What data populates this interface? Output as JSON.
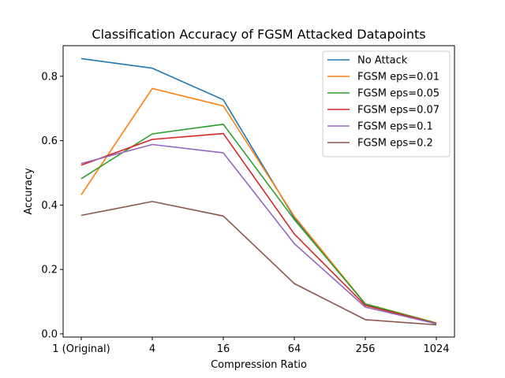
{
  "chart_data": {
    "type": "line",
    "title": "Classification Accuracy of FGSM Attacked Datapoints",
    "xlabel": "Compression Ratio",
    "ylabel": "Accuracy",
    "categories": [
      "1 (Original)",
      "4",
      "16",
      "64",
      "256",
      "1024"
    ],
    "ylim": [
      -0.01,
      0.895
    ],
    "yticks": [
      0.0,
      0.2,
      0.4,
      0.6,
      0.8
    ],
    "grid": false,
    "legend_position": "top-right",
    "series": [
      {
        "name": "No Attack",
        "color": "#1f77b4",
        "values": [
          0.855,
          0.825,
          0.727,
          0.36,
          0.092,
          0.033
        ]
      },
      {
        "name": "FGSM eps=0.01",
        "color": "#ff7f0e",
        "values": [
          0.432,
          0.762,
          0.708,
          0.365,
          0.093,
          0.034
        ]
      },
      {
        "name": "FGSM eps=0.05",
        "color": "#2ca02c",
        "values": [
          0.482,
          0.621,
          0.651,
          0.355,
          0.093,
          0.033
        ]
      },
      {
        "name": "FGSM eps=0.07",
        "color": "#d62728",
        "values": [
          0.524,
          0.604,
          0.622,
          0.31,
          0.088,
          0.032
        ]
      },
      {
        "name": "FGSM eps=0.1",
        "color": "#9467bd",
        "values": [
          0.529,
          0.588,
          0.562,
          0.28,
          0.083,
          0.031
        ]
      },
      {
        "name": "FGSM eps=0.2",
        "color": "#8c564b",
        "values": [
          0.368,
          0.411,
          0.366,
          0.156,
          0.044,
          0.028
        ]
      }
    ]
  }
}
